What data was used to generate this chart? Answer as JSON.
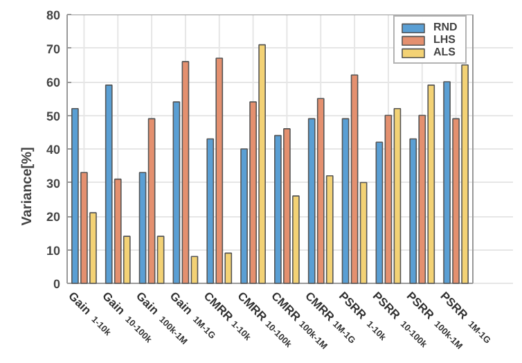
{
  "chart_data": {
    "type": "bar",
    "ylabel": "Variance[%]",
    "categories": [
      "Gain$_{1-10k}$",
      "Gain$_{10-100k}$",
      "Gain$_{100k-1M}$",
      "Gain$_{1M-1G}$",
      "CMRR$_{1-10k}$",
      "CMRR$_{10-100k}$",
      "CMRR$_{100k-1M}$",
      "CMRR$_{1M-1G}$",
      "PSRR$_{1-10k}$",
      "PSRR$_{10-100k}$",
      "PSRR$_{100k-1M}$",
      "PSRR$_{1M-1G}$"
    ],
    "series": [
      {
        "name": "RND",
        "color": "#5a9fd4",
        "values": [
          52,
          59,
          33,
          54,
          43,
          40,
          44,
          49,
          49,
          42,
          43,
          60
        ]
      },
      {
        "name": "LHS",
        "color": "#e4906f",
        "values": [
          33,
          31,
          49,
          66,
          67,
          54,
          46,
          55,
          62,
          50,
          50,
          49
        ]
      },
      {
        "name": "ALS",
        "color": "#f3d275",
        "values": [
          21,
          14,
          14,
          8,
          9,
          71,
          26,
          32,
          30,
          52,
          59,
          65
        ]
      }
    ],
    "ylim": [
      0,
      80
    ],
    "yticks": [
      0,
      10,
      20,
      30,
      40,
      50,
      60,
      70,
      80
    ],
    "grid": true,
    "legend": "top right"
  }
}
